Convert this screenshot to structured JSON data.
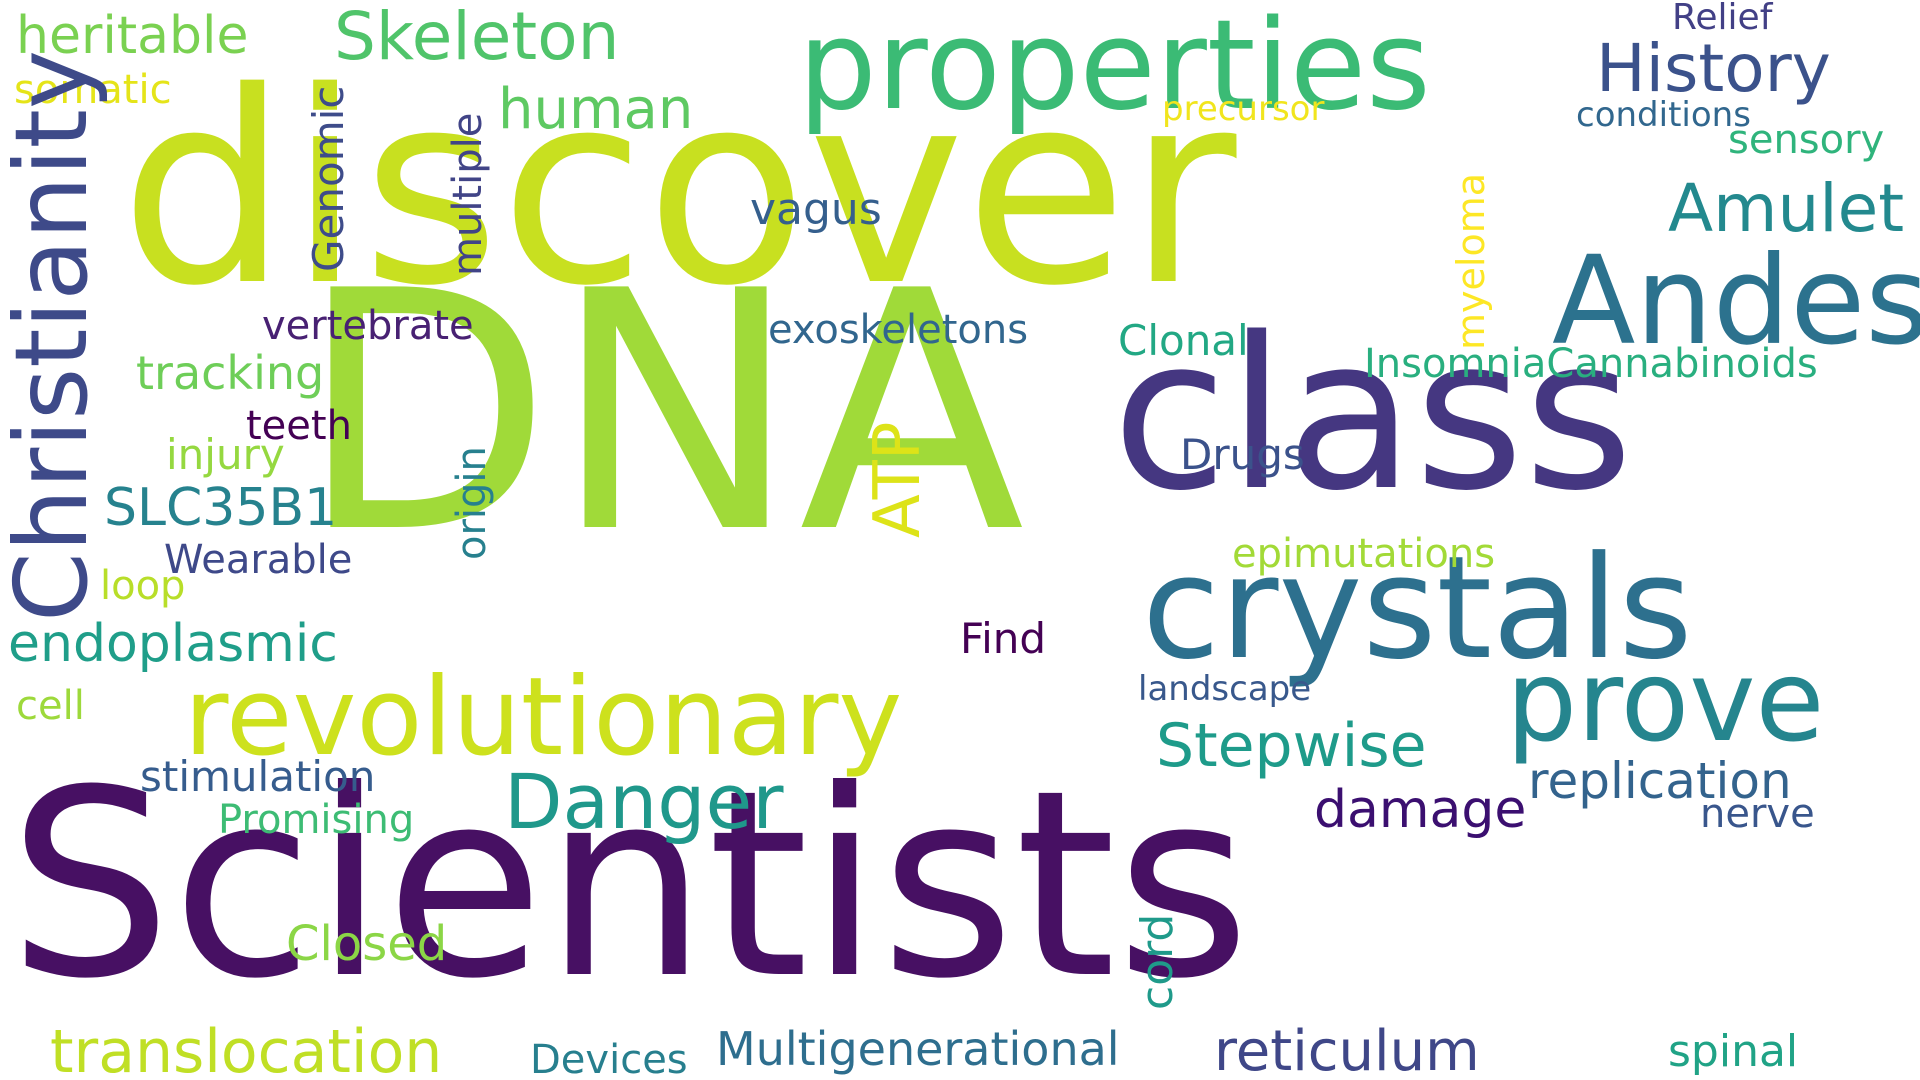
{
  "cloud": {
    "background": "#ffffff",
    "words": [
      {
        "text": "DNA",
        "color": "#a0da39"
      },
      {
        "text": "discover",
        "color": "#c8e020"
      },
      {
        "text": "Scientists",
        "color": "#471063"
      },
      {
        "text": "class",
        "color": "#453781"
      },
      {
        "text": "properties",
        "color": "#3bbb75"
      },
      {
        "text": "crystals",
        "color": "#2d708e"
      },
      {
        "text": "Andes",
        "color": "#2c728e"
      },
      {
        "text": "revolutionary",
        "color": "#cde11d"
      },
      {
        "text": "prove",
        "color": "#25858e"
      },
      {
        "text": "Danger",
        "color": "#3e4a89"
      },
      {
        "text": "Christianity",
        "color": "#1f988b"
      },
      {
        "text": "Skeleton",
        "color": "#50c46a"
      },
      {
        "text": "History",
        "color": "#3b528b"
      },
      {
        "text": "Amulet",
        "color": "#23898e"
      },
      {
        "text": "translocation",
        "color": "#c0df25"
      },
      {
        "text": "reticulum",
        "color": "#3f4788"
      },
      {
        "text": "Multigenerational",
        "color": "#2e6e8e"
      },
      {
        "text": "replication",
        "color": "#33638d"
      },
      {
        "text": "Stepwise",
        "color": "#1e9b8a"
      },
      {
        "text": "endoplasmic",
        "color": "#1f9e89"
      },
      {
        "text": "human",
        "color": "#5ec962"
      },
      {
        "text": "heritable",
        "color": "#7ad151"
      },
      {
        "text": "damage",
        "color": "#3b0f70"
      },
      {
        "text": "SLC35B1",
        "color": "#26828e"
      },
      {
        "text": "Closed",
        "color": "#8bd646"
      },
      {
        "text": "ATP",
        "color": "#dde318"
      },
      {
        "text": "tracking",
        "color": "#6ece58"
      },
      {
        "text": "exoskeletons",
        "color": "#31668e"
      },
      {
        "text": "vagus",
        "color": "#355f8d"
      },
      {
        "text": "stimulation",
        "color": "#365c8d"
      },
      {
        "text": "Clonal",
        "color": "#22a884"
      },
      {
        "text": "Drugs",
        "color": "#3b528b"
      },
      {
        "text": "Find",
        "color": "#440154"
      },
      {
        "text": "vertebrate",
        "color": "#482173"
      },
      {
        "text": "InsomniaCannabinoids",
        "color": "#29af7f"
      },
      {
        "text": "spinal",
        "color": "#20a386"
      },
      {
        "text": "sensory",
        "color": "#2fb47c"
      },
      {
        "text": "nerve",
        "color": "#39568c"
      },
      {
        "text": "Devices",
        "color": "#277f8e"
      },
      {
        "text": "Promising",
        "color": "#3dbc74"
      },
      {
        "text": "epimutations",
        "color": "#a2da37"
      },
      {
        "text": "Wearable",
        "color": "#3e4989"
      },
      {
        "text": "somatic",
        "color": "#e5e419"
      },
      {
        "text": "cell",
        "color": "#9dd93b"
      },
      {
        "text": "loop",
        "color": "#b8de29"
      },
      {
        "text": "injury",
        "color": "#95d840"
      },
      {
        "text": "teeth",
        "color": "#440154"
      },
      {
        "text": "conditions",
        "color": "#31678e"
      },
      {
        "text": "Relief",
        "color": "#424086"
      },
      {
        "text": "precursor",
        "color": "#f1e51d"
      },
      {
        "text": "landscape",
        "color": "#38588c"
      },
      {
        "text": "Genomic",
        "color": "#3e4c8a"
      },
      {
        "text": "multiple",
        "color": "#414487"
      },
      {
        "text": "origin",
        "color": "#27808e"
      },
      {
        "text": "myeloma",
        "color": "#fde725"
      },
      {
        "text": "cord",
        "color": "#1f9a8a"
      }
    ]
  }
}
